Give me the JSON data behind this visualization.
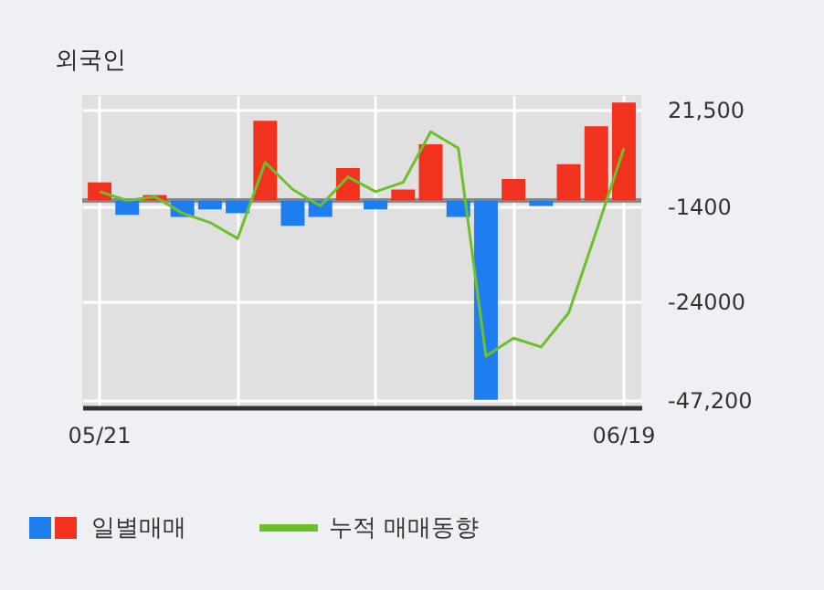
{
  "chart_data": {
    "type": "bar",
    "title": "외국인",
    "categories": [
      "05/21",
      null,
      null,
      null,
      null,
      null,
      null,
      null,
      null,
      null,
      null,
      null,
      null,
      null,
      null,
      null,
      null,
      null,
      null,
      "06/19"
    ],
    "series": [
      {
        "name": "일별매매",
        "type": "bar",
        "colors": [
          "#f0321e",
          "#1e7ef0",
          "#f0321e",
          "#1e7ef0",
          "#1e7ef0",
          "#1e7ef0",
          "#f0321e",
          "#1e7ef0",
          "#1e7ef0",
          "#f0321e",
          "#1e7ef0",
          "#f0321e",
          "#f0321e",
          "#1e7ef0",
          "#1e7ef0",
          "#f0321e",
          "#1e7ef0",
          "#f0321e",
          "#f0321e",
          "#f0321e"
        ],
        "values": [
          4300,
          -3400,
          1300,
          -3900,
          -2100,
          -3000,
          18900,
          -6000,
          -3900,
          7700,
          -2100,
          2600,
          13300,
          -3900,
          -47200,
          5100,
          -1300,
          8600,
          17600,
          23200
        ]
      },
      {
        "name": "누적 매매동향",
        "type": "line",
        "color": "#6cc12a",
        "values": [
          2100,
          0,
          900,
          -3000,
          -5200,
          -9000,
          9000,
          2600,
          -1300,
          5600,
          2100,
          4300,
          16300,
          12400,
          -36900,
          -32600,
          -34700,
          -26600,
          -7300,
          12400
        ]
      }
    ],
    "ylim": [
      -49000,
      25000
    ],
    "yticks": [
      {
        "value": 21500,
        "label": "21,500"
      },
      {
        "value": -1400,
        "label": "-1400"
      },
      {
        "value": -24000,
        "label": "-24000"
      },
      {
        "value": -47200,
        "label": "-47,200"
      }
    ],
    "ref_lines": [
      {
        "axis": "y",
        "value": 0,
        "color": "#8a8a8a"
      }
    ],
    "grid": true,
    "legend": "bottom"
  }
}
